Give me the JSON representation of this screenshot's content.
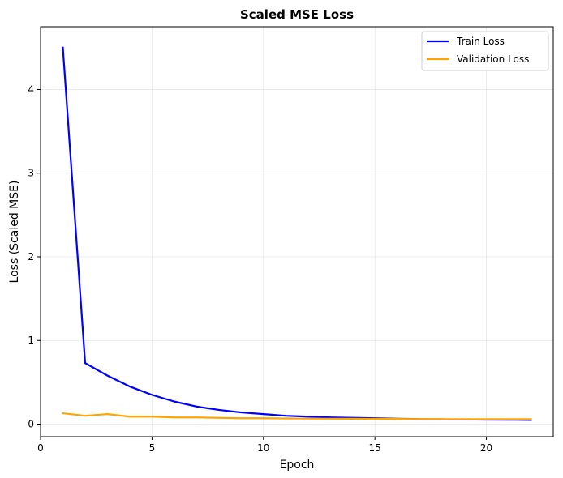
{
  "chart_data": {
    "type": "line",
    "title": "Scaled MSE Loss",
    "xlabel": "Epoch",
    "ylabel": "Loss (Scaled MSE)",
    "xlim": [
      0,
      23
    ],
    "ylim": [
      -0.15,
      4.75
    ],
    "x_ticks": [
      0,
      5,
      10,
      15,
      20
    ],
    "y_ticks": [
      0,
      1,
      2,
      3,
      4
    ],
    "grid": true,
    "legend_position": "top-right",
    "x": [
      1,
      2,
      3,
      4,
      5,
      6,
      7,
      8,
      9,
      10,
      11,
      12,
      13,
      14,
      15,
      16,
      17,
      18,
      19,
      20,
      21,
      22
    ],
    "series": [
      {
        "name": "Train Loss",
        "color": "#0000ff",
        "values": [
          4.5,
          0.73,
          0.58,
          0.45,
          0.35,
          0.27,
          0.21,
          0.17,
          0.14,
          0.12,
          0.1,
          0.09,
          0.08,
          0.075,
          0.07,
          0.065,
          0.06,
          0.058,
          0.055,
          0.053,
          0.052,
          0.05
        ]
      },
      {
        "name": "Validation Loss",
        "color": "#ffa500",
        "values": [
          0.13,
          0.1,
          0.12,
          0.09,
          0.09,
          0.08,
          0.08,
          0.075,
          0.07,
          0.07,
          0.068,
          0.066,
          0.065,
          0.064,
          0.063,
          0.062,
          0.061,
          0.06,
          0.06,
          0.06,
          0.06,
          0.06
        ]
      }
    ]
  }
}
